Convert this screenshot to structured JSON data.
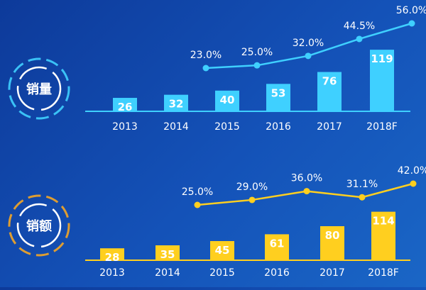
{
  "colors": {
    "volume_accent": "#3fd0ff",
    "revenue_accent": "#ffcf1f"
  },
  "chart_data": [
    {
      "type": "bar",
      "title": "销量",
      "categories": [
        "2013",
        "2014",
        "2015",
        "2016",
        "2017",
        "2018F"
      ],
      "series": [
        {
          "values": [
            26,
            32,
            40,
            53,
            76,
            119
          ]
        },
        {
          "values": [
            null,
            23.0,
            25.0,
            32.0,
            44.5,
            56.0
          ],
          "labels": [
            "",
            "23.0%",
            "25.0%",
            "32.0%",
            "44.5%",
            "56.0%"
          ]
        }
      ]
    },
    {
      "type": "bar",
      "title": "销额",
      "categories": [
        "2013",
        "2014",
        "2015",
        "2016",
        "2017",
        "2018F"
      ],
      "series": [
        {
          "values": [
            28,
            35,
            45,
            61,
            80,
            114
          ]
        },
        {
          "values": [
            null,
            25.0,
            29.0,
            36.0,
            31.1,
            42.0
          ],
          "labels": [
            "",
            "25.0%",
            "29.0%",
            "36.0%",
            "31.1%",
            "42.0%"
          ]
        }
      ]
    }
  ]
}
